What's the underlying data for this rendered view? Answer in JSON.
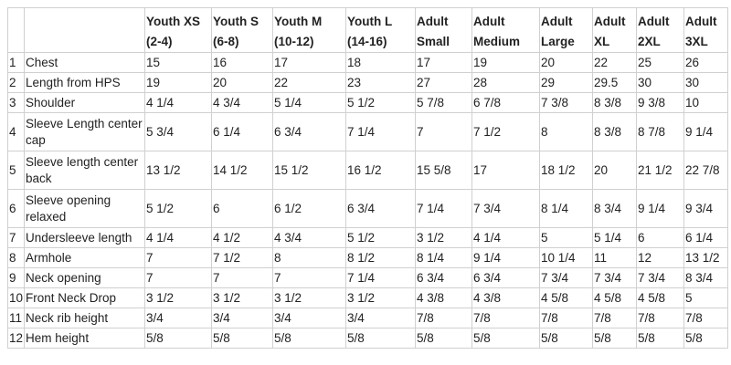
{
  "table": {
    "headers": [
      "",
      "",
      "Youth XS (2-4)",
      "Youth S (6-8)",
      "Youth M (10-12)",
      "Youth L (14-16)",
      "Adult Small",
      "Adult Medium",
      "Adult Large",
      "Adult XL",
      "Adult 2XL",
      "Adult 3XL"
    ],
    "rows": [
      {
        "num": "1",
        "label": "Chest",
        "values": [
          "15",
          "16",
          "17",
          "18",
          "17",
          "19",
          "20",
          "22",
          "25",
          "26"
        ]
      },
      {
        "num": "2",
        "label": "Length from HPS",
        "values": [
          "19",
          "20",
          "22",
          "23",
          "27",
          "28",
          "29",
          "29.5",
          "30",
          "30"
        ]
      },
      {
        "num": "3",
        "label": "Shoulder",
        "values": [
          "4 1/4",
          "4 3/4",
          "5 1/4",
          "5 1/2",
          "5 7/8",
          "6 7/8",
          "7 3/8",
          "8 3/8",
          "9 3/8",
          "10"
        ]
      },
      {
        "num": "4",
        "label": "Sleeve Length center cap",
        "values": [
          "5 3/4",
          "6 1/4",
          "6 3/4",
          "7 1/4",
          "7",
          "7 1/2",
          "8",
          "8 3/8",
          "8 7/8",
          "9 1/4"
        ]
      },
      {
        "num": "5",
        "label": "Sleeve length center back",
        "values": [
          "13 1/2",
          "14 1/2",
          "15 1/2",
          "16 1/2",
          "15 5/8",
          "17",
          "18 1/2",
          "20",
          "21 1/2",
          "22 7/8"
        ]
      },
      {
        "num": "6",
        "label": "Sleeve opening relaxed",
        "values": [
          "5 1/2",
          "6",
          "6 1/2",
          "6 3/4",
          "7 1/4",
          "7 3/4",
          "8 1/4",
          "8 3/4",
          "9 1/4",
          "9 3/4"
        ]
      },
      {
        "num": "7",
        "label": "Undersleeve length",
        "values": [
          "4 1/4",
          "4 1/2",
          "4 3/4",
          "5 1/2",
          "3 1/2",
          "4 1/4",
          "5",
          "5 1/4",
          "6",
          "6 1/4"
        ]
      },
      {
        "num": "8",
        "label": "Armhole",
        "values": [
          "7",
          "7 1/2",
          "8",
          "8 1/2",
          "8 1/4",
          "9 1/4",
          "10 1/4",
          "11",
          "12",
          "13 1/2"
        ]
      },
      {
        "num": "9",
        "label": "Neck opening",
        "values": [
          "7",
          "7",
          "7",
          "7 1/4",
          "6 3/4",
          "6 3/4",
          "7 3/4",
          "7 3/4",
          "7 3/4",
          "8 3/4"
        ]
      },
      {
        "num": "10",
        "label": "Front Neck Drop",
        "values": [
          "3 1/2",
          "3 1/2",
          "3 1/2",
          "3 1/2",
          "4 3/8",
          "4 3/8",
          "4 5/8",
          "4 5/8",
          "4 5/8",
          "5"
        ]
      },
      {
        "num": "11",
        "label": "Neck rib height",
        "values": [
          "3/4",
          "3/4",
          "3/4",
          "3/4",
          "7/8",
          "7/8",
          "7/8",
          "7/8",
          "7/8",
          "7/8"
        ]
      },
      {
        "num": "12",
        "label": "Hem height",
        "values": [
          "5/8",
          "5/8",
          "5/8",
          "5/8",
          "5/8",
          "5/8",
          "5/8",
          "5/8",
          "5/8",
          "5/8"
        ]
      }
    ]
  }
}
